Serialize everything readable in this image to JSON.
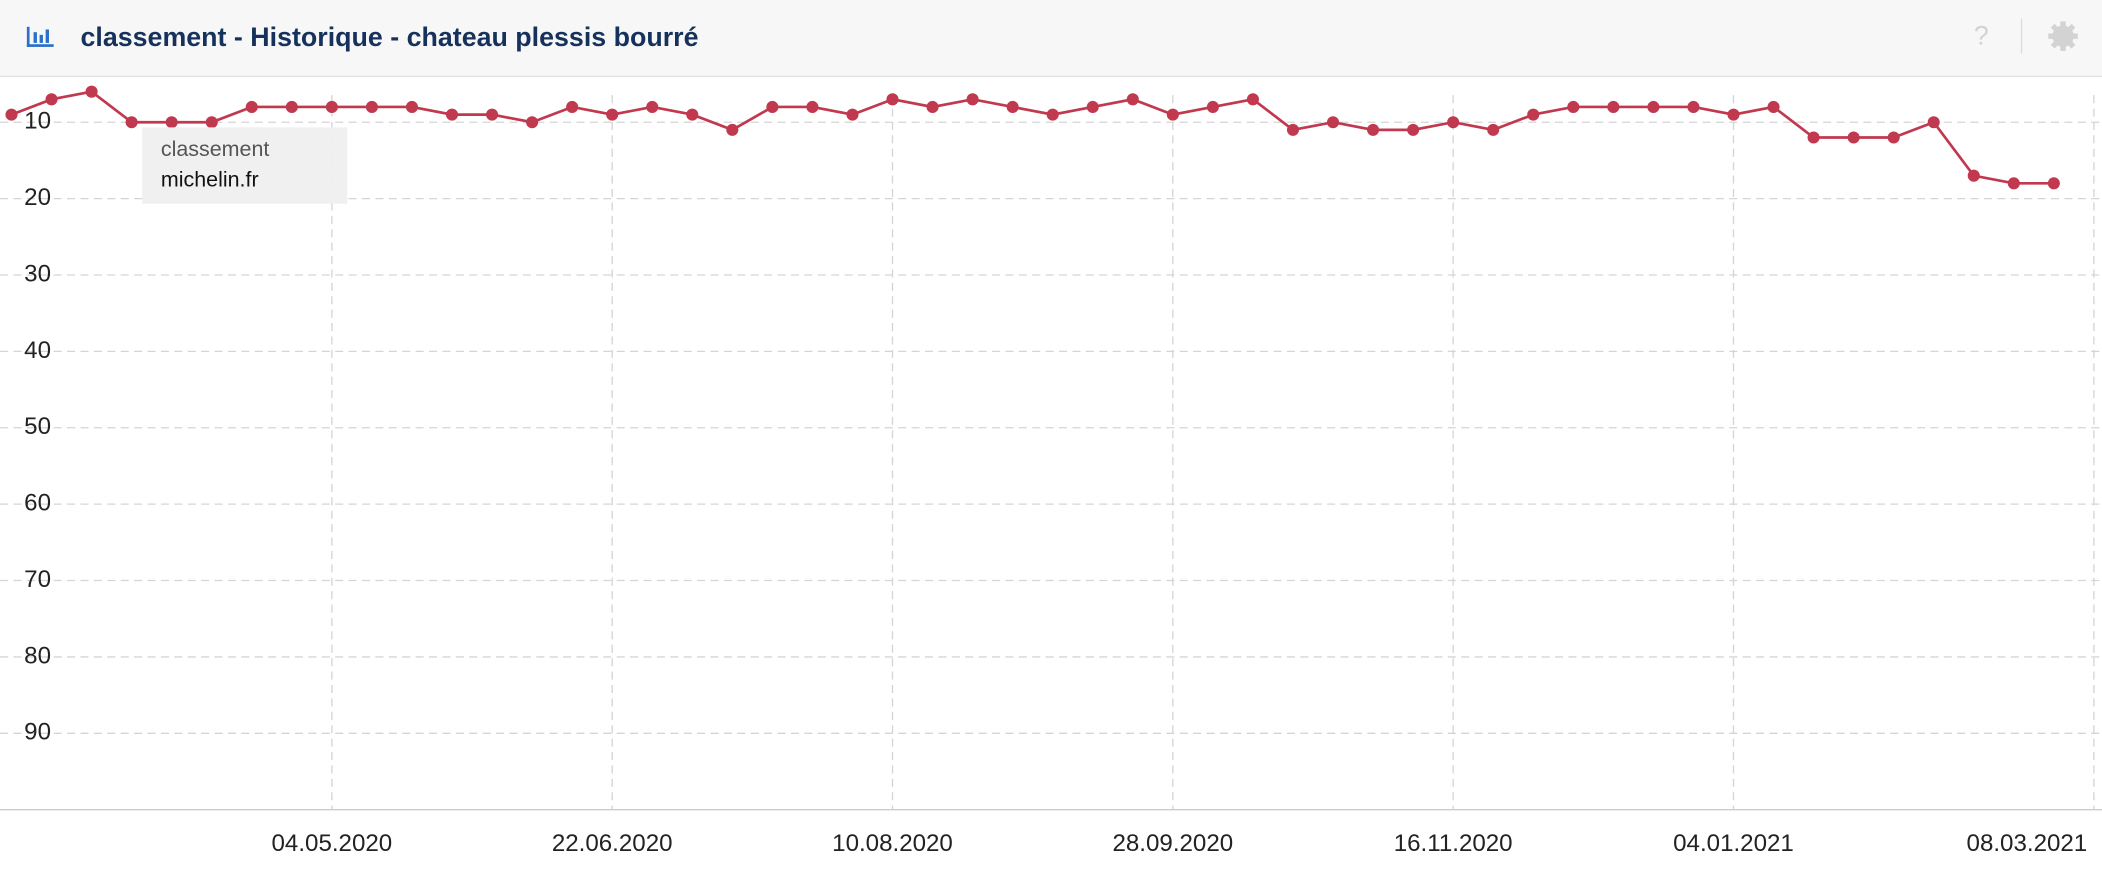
{
  "header": {
    "title": "classement - Historique - chateau plessis bourré"
  },
  "chart_data": {
    "type": "line",
    "tooltip_title": "classement",
    "x": [
      "09.03.2020",
      "16.03.2020",
      "23.03.2020",
      "30.03.2020",
      "06.04.2020",
      "13.04.2020",
      "20.04.2020",
      "27.04.2020",
      "04.05.2020",
      "11.05.2020",
      "18.05.2020",
      "25.05.2020",
      "01.06.2020",
      "08.06.2020",
      "15.06.2020",
      "22.06.2020",
      "29.06.2020",
      "06.07.2020",
      "13.07.2020",
      "20.07.2020",
      "27.07.2020",
      "03.08.2020",
      "10.08.2020",
      "17.08.2020",
      "24.08.2020",
      "31.08.2020",
      "07.09.2020",
      "14.09.2020",
      "21.09.2020",
      "28.09.2020",
      "05.10.2020",
      "12.10.2020",
      "19.10.2020",
      "26.10.2020",
      "02.11.2020",
      "09.11.2020",
      "16.11.2020",
      "23.11.2020",
      "30.11.2020",
      "07.12.2020",
      "14.12.2020",
      "21.12.2020",
      "28.12.2020",
      "04.01.2021",
      "11.01.2021",
      "18.01.2021",
      "25.01.2021",
      "01.02.2021",
      "08.02.2021",
      "15.02.2021",
      "22.02.2021",
      "01.03.2021"
    ],
    "series": [
      {
        "name": "michelin.fr",
        "color": "#c0394f",
        "values": [
          9,
          7,
          6,
          10,
          10,
          10,
          8,
          8,
          8,
          8,
          8,
          9,
          9,
          10,
          8,
          9,
          8,
          9,
          11,
          8,
          8,
          9,
          7,
          8,
          7,
          8,
          9,
          8,
          7,
          9,
          8,
          7,
          11,
          10,
          11,
          11,
          10,
          11,
          9,
          8,
          8,
          8,
          8,
          9,
          8,
          12,
          12,
          12,
          10,
          17,
          18,
          18
        ]
      }
    ],
    "xlim": [
      "07.03.2020",
      "08.03.2021"
    ],
    "xticks": [
      "04.05.2020",
      "22.06.2020",
      "10.08.2020",
      "28.09.2020",
      "16.11.2020",
      "04.01.2021",
      "08.03.2021"
    ],
    "ylim": [
      100,
      4
    ],
    "yticks": [
      10,
      20,
      30,
      40,
      50,
      60,
      70,
      80,
      90
    ],
    "grid": true
  }
}
